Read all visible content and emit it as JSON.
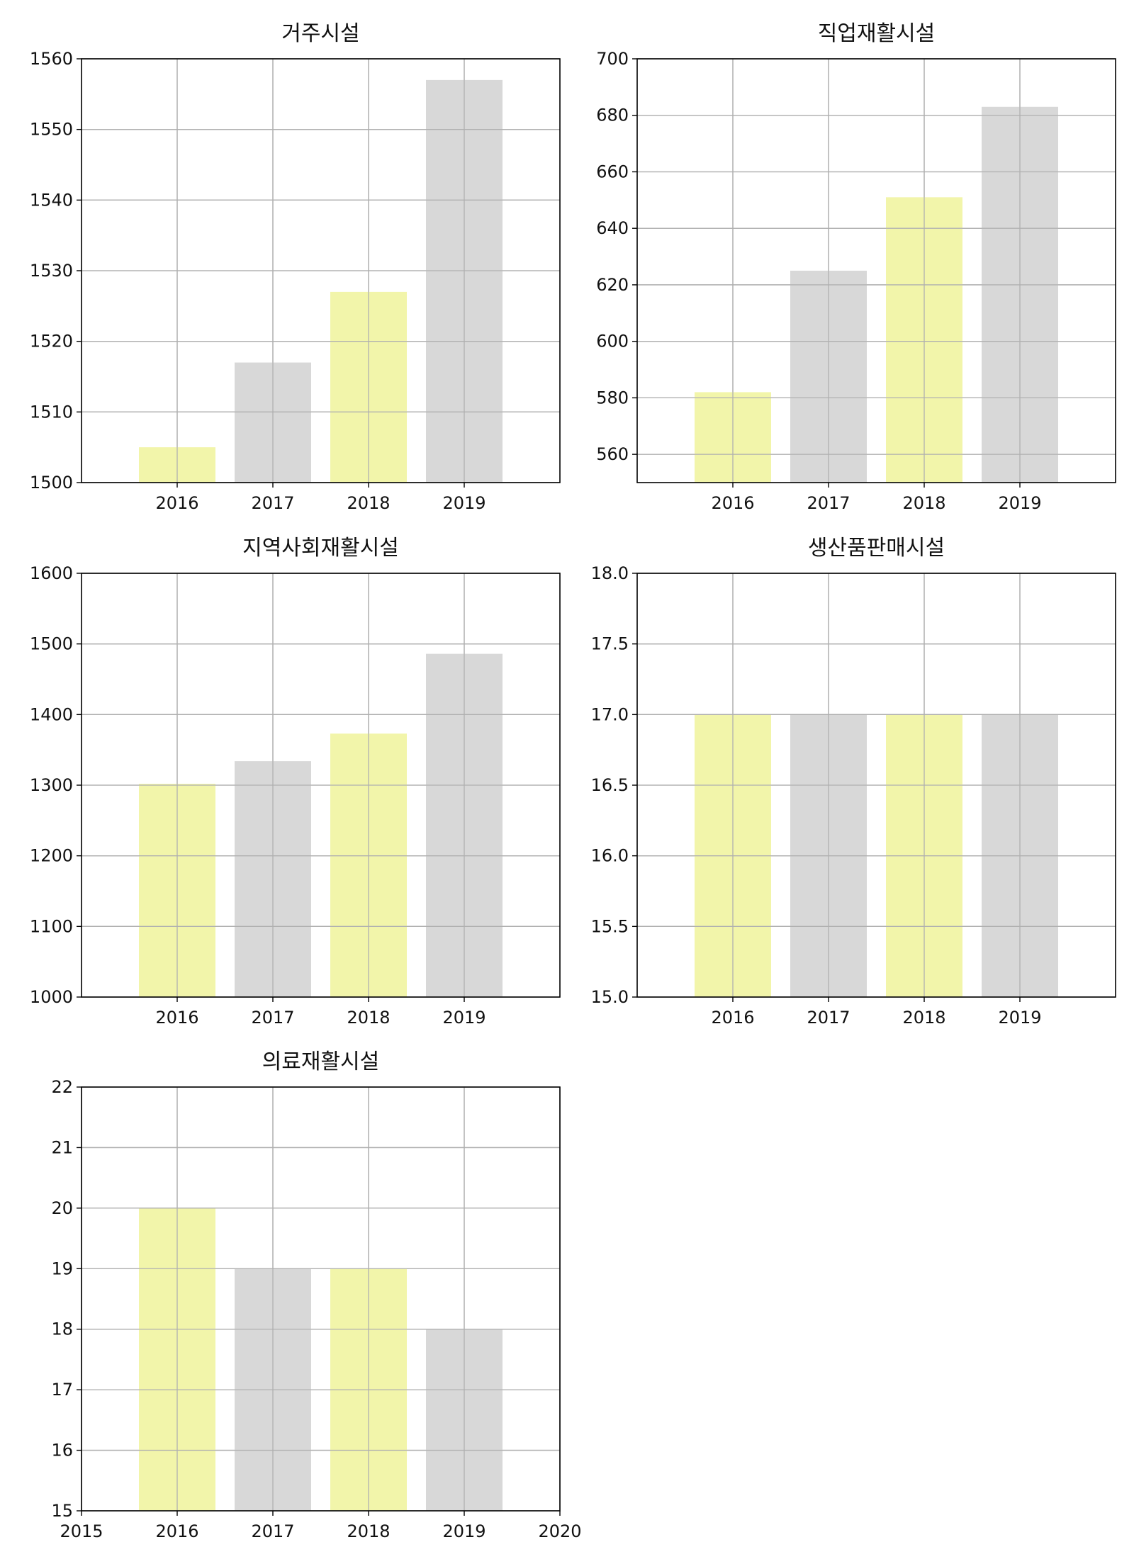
{
  "colors": {
    "yellow_bar": "#f2f5aa",
    "gray_bar": "#d8d8d8",
    "grid": "#b0b0b0",
    "axis": "#000000"
  },
  "chart_data": [
    {
      "type": "bar",
      "title": "거주시설",
      "categories": [
        "2016",
        "2017",
        "2018",
        "2019"
      ],
      "values": [
        1505,
        1517,
        1527,
        1557
      ],
      "ylim": [
        1500,
        1560
      ],
      "xlim": [
        2015,
        2020
      ],
      "yticks": [
        "1500",
        "1510",
        "1520",
        "1530",
        "1540",
        "1550",
        "1560"
      ],
      "xtick_labels": [
        "2016",
        "2017",
        "2018",
        "2019"
      ],
      "bar_colors": [
        "yellow",
        "gray",
        "yellow",
        "gray"
      ],
      "grid": true
    },
    {
      "type": "bar",
      "title": "직업재활시설",
      "categories": [
        "2016",
        "2017",
        "2018",
        "2019"
      ],
      "values": [
        582,
        625,
        651,
        683
      ],
      "ylim": [
        550,
        700
      ],
      "xlim": [
        2015,
        2020
      ],
      "yticks": [
        "560",
        "580",
        "600",
        "620",
        "640",
        "660",
        "680",
        "700"
      ],
      "xtick_labels": [
        "2016",
        "2017",
        "2018",
        "2019"
      ],
      "bar_colors": [
        "yellow",
        "gray",
        "yellow",
        "gray"
      ],
      "grid": true
    },
    {
      "type": "bar",
      "title": "지역사회재활시설",
      "categories": [
        "2016",
        "2017",
        "2018",
        "2019"
      ],
      "values": [
        1302,
        1334,
        1373,
        1486
      ],
      "ylim": [
        1000,
        1600
      ],
      "xlim": [
        2015,
        2020
      ],
      "yticks": [
        "1000",
        "1100",
        "1200",
        "1300",
        "1400",
        "1500",
        "1600"
      ],
      "xtick_labels": [
        "2016",
        "2017",
        "2018",
        "2019"
      ],
      "bar_colors": [
        "yellow",
        "gray",
        "yellow",
        "gray"
      ],
      "grid": true
    },
    {
      "type": "bar",
      "title": "생산품판매시설",
      "categories": [
        "2016",
        "2017",
        "2018",
        "2019"
      ],
      "values": [
        17,
        17,
        17,
        17
      ],
      "ylim": [
        15,
        18
      ],
      "xlim": [
        2015,
        2020
      ],
      "yticks": [
        "15.0",
        "15.5",
        "16.0",
        "16.5",
        "17.0",
        "17.5",
        "18.0"
      ],
      "xtick_labels": [
        "2016",
        "2017",
        "2018",
        "2019"
      ],
      "bar_colors": [
        "yellow",
        "gray",
        "yellow",
        "gray"
      ],
      "grid": true
    },
    {
      "type": "bar",
      "title": "의료재활시설",
      "categories": [
        "2016",
        "2017",
        "2018",
        "2019"
      ],
      "values": [
        20,
        19,
        19,
        18
      ],
      "ylim": [
        15,
        22
      ],
      "xlim": [
        2015,
        2020
      ],
      "yticks": [
        "15",
        "16",
        "17",
        "18",
        "19",
        "20",
        "21",
        "22"
      ],
      "xtick_labels": [
        "2015",
        "2016",
        "2017",
        "2018",
        "2019",
        "2020"
      ],
      "bar_colors": [
        "yellow",
        "gray",
        "yellow",
        "gray"
      ],
      "grid": true
    }
  ]
}
